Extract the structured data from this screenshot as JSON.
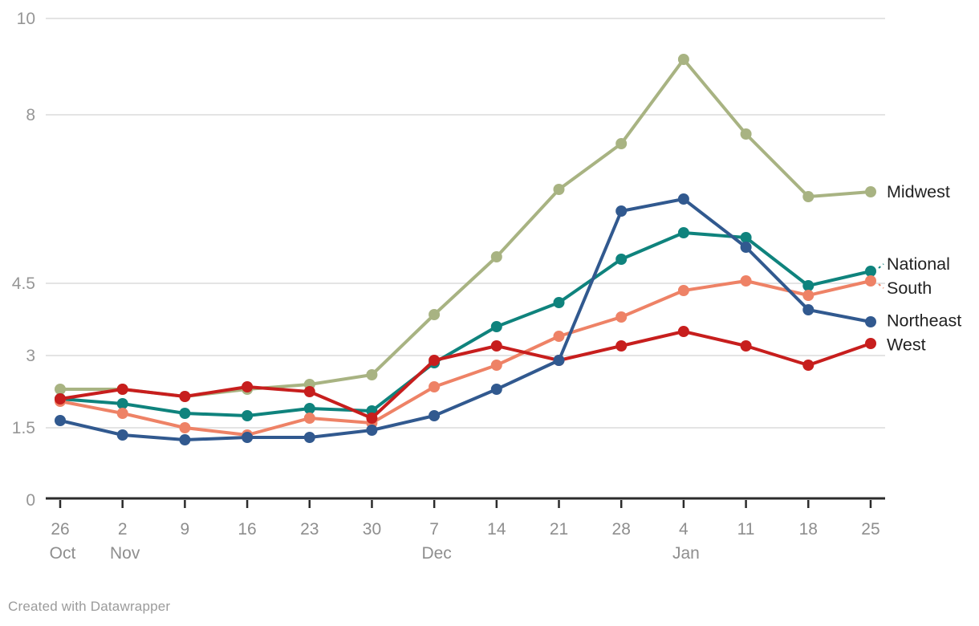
{
  "chart_data": {
    "type": "line",
    "title": "",
    "xlabel": "",
    "ylabel": "",
    "ylim": [
      0,
      10
    ],
    "grid": true,
    "legend_position": "right-of-line-ends",
    "y_ticks": [
      0,
      1.5,
      3,
      4.5,
      8,
      10
    ],
    "y_tick_labels": [
      "0",
      "1.5",
      "3",
      "4.5",
      "8",
      "10"
    ],
    "x_day_labels": [
      "26",
      "2",
      "9",
      "16",
      "23",
      "30",
      "7",
      "14",
      "21",
      "28",
      "4",
      "11",
      "18",
      "25"
    ],
    "x_month_labels": [
      {
        "index": 0,
        "label": "Oct"
      },
      {
        "index": 1,
        "label": "Nov"
      },
      {
        "index": 6,
        "label": "Dec"
      },
      {
        "index": 10,
        "label": "Jan"
      }
    ],
    "series": [
      {
        "name": "Midwest",
        "color": "#a8b382",
        "values": [
          2.3,
          2.3,
          2.15,
          2.3,
          2.4,
          2.6,
          3.85,
          5.05,
          6.45,
          7.4,
          9.15,
          7.6,
          6.3,
          6.4
        ]
      },
      {
        "name": "National",
        "color": "#0f837d",
        "values": [
          2.1,
          2.0,
          1.8,
          1.75,
          1.9,
          1.85,
          2.85,
          3.6,
          4.1,
          5.0,
          5.55,
          5.45,
          4.45,
          4.75
        ]
      },
      {
        "name": "South",
        "color": "#ee8266",
        "values": [
          2.05,
          1.8,
          1.5,
          1.35,
          1.7,
          1.6,
          2.35,
          2.8,
          3.4,
          3.8,
          4.35,
          4.55,
          4.25,
          4.55
        ]
      },
      {
        "name": "Northeast",
        "color": "#31598f",
        "values": [
          1.65,
          1.35,
          1.25,
          1.3,
          1.3,
          1.45,
          1.75,
          2.3,
          2.9,
          6.0,
          6.25,
          5.25,
          3.95,
          3.7
        ]
      },
      {
        "name": "West",
        "color": "#c71e1d",
        "values": [
          2.1,
          2.3,
          2.15,
          2.35,
          2.25,
          1.7,
          2.9,
          3.2,
          2.9,
          3.2,
          3.5,
          3.2,
          2.8,
          3.25
        ]
      }
    ],
    "draw_order": [
      "Midwest",
      "National",
      "South",
      "West",
      "Northeast"
    ],
    "colors": {
      "gridline": "#e4e4e4",
      "axis_line": "#2b2b2b",
      "tick_label": "#969696",
      "series_label": "#222222"
    }
  },
  "footer": {
    "credit": "Created with Datawrapper"
  }
}
